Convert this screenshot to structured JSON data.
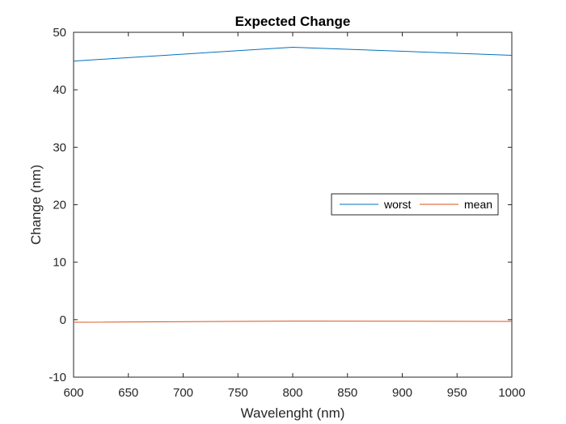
{
  "chart_data": {
    "type": "line",
    "title": "Expected Change",
    "xlabel": "Wavelenght (nm)",
    "ylabel": "Change (nm)",
    "xlim": [
      600,
      1000
    ],
    "ylim": [
      -10,
      50
    ],
    "xticks": [
      600,
      650,
      700,
      750,
      800,
      850,
      900,
      950,
      1000
    ],
    "yticks": [
      -10,
      0,
      10,
      20,
      30,
      40,
      50
    ],
    "xtick_labels": [
      "600",
      "650",
      "700",
      "750",
      "800",
      "850",
      "900",
      "950",
      "1000"
    ],
    "ytick_labels": [
      "-10",
      "0",
      "10",
      "20",
      "30",
      "40",
      "50"
    ],
    "x": [
      600,
      800,
      1000
    ],
    "series": [
      {
        "name": "worst",
        "values": [
          45.0,
          47.4,
          46.0
        ],
        "color": "#0072BD"
      },
      {
        "name": "mean",
        "values": [
          -0.45,
          -0.25,
          -0.3
        ],
        "color": "#D95319"
      }
    ],
    "grid": false,
    "legend_position": "right"
  }
}
